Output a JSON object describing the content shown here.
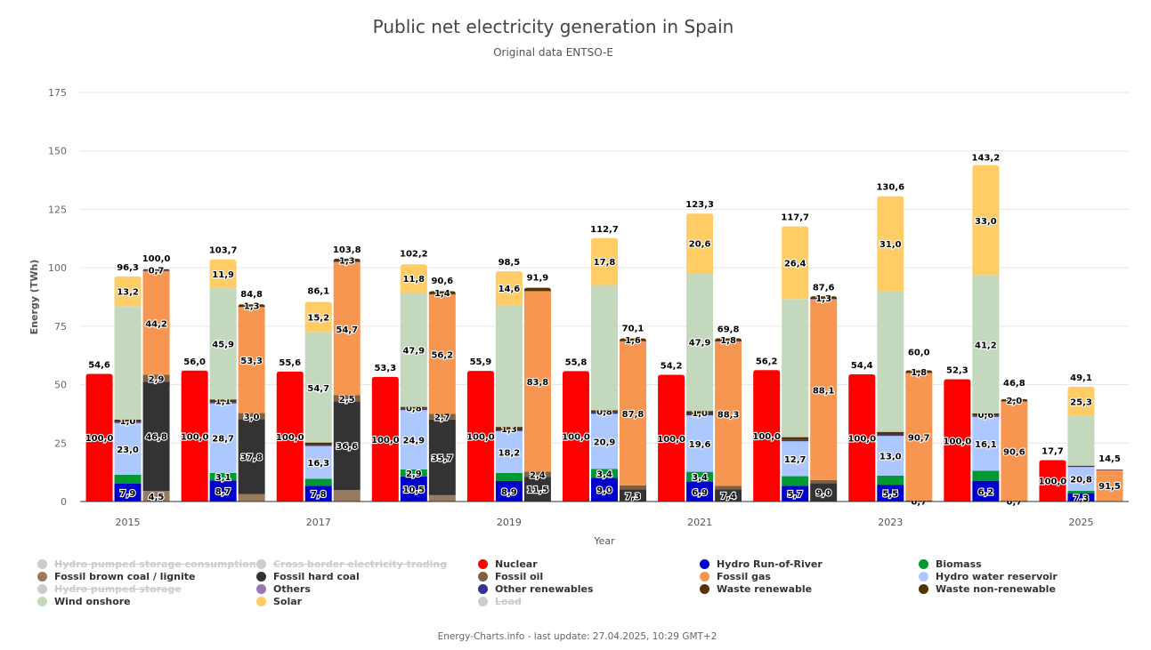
{
  "header": {
    "title": "Public net electricity generation in Spain",
    "subtitle": "Original data ENTSO-E"
  },
  "footer": "Energy-Charts.info - last update: 27.04.2025, 10:29 GMT+2",
  "chart_data": {
    "type": "bar",
    "stacked": true,
    "title": "Public net electricity generation in Spain",
    "subtitle": "Original data ENTSO-E",
    "xlabel": "Year",
    "ylabel": "Energy (TWh)",
    "ylim": [
      0,
      175
    ],
    "yticks": [
      0,
      25,
      50,
      75,
      100,
      125,
      150,
      175
    ],
    "xtick_labels": [
      "2015",
      "2017",
      "2019",
      "2021",
      "2023",
      "2025"
    ],
    "grid": true,
    "legend_position": "bottom",
    "label_unit_note": "Segment labels are percent share within each stack; top labels are stack totals in TWh",
    "categories": [
      "2015",
      "2016",
      "2017",
      "2018",
      "2019",
      "2020",
      "2021",
      "2022",
      "2023",
      "2024",
      "2025"
    ],
    "stacks": [
      {
        "name": "Nuclear",
        "totals": [
          54.6,
          56.0,
          55.6,
          53.3,
          55.9,
          55.8,
          54.2,
          56.2,
          54.4,
          52.3,
          17.7
        ],
        "segments": [
          {
            "series": "Nuclear",
            "percent": [
              100.0,
              100.0,
              100.0,
              100.0,
              100.0,
              100.0,
              100.0,
              100.0,
              100.0,
              100.0,
              100.0
            ],
            "labeled": [
              true,
              true,
              true,
              true,
              true,
              true,
              true,
              true,
              true,
              true,
              true
            ]
          }
        ]
      },
      {
        "name": "Renewables",
        "totals": [
          96.3,
          103.7,
          86.1,
          102.2,
          98.5,
          112.7,
          123.3,
          117.7,
          130.6,
          143.2,
          49.1
        ],
        "segments": [
          {
            "series": "Hydro Run-of-River",
            "percent": [
              7.9,
              8.7,
              7.8,
              10.5,
              8.9,
              9.0,
              6.9,
              5.7,
              5.5,
              6.2,
              7.3
            ],
            "labeled": [
              true,
              true,
              true,
              true,
              true,
              true,
              true,
              true,
              true,
              true,
              true
            ]
          },
          {
            "series": "Biomass",
            "percent": [
              4.0,
              3.1,
              3.5,
              2.9,
              3.5,
              3.4,
              3.4,
              3.5,
              3.0,
              3.0,
              2.0
            ],
            "labeled": [
              false,
              true,
              false,
              true,
              false,
              true,
              true,
              false,
              false,
              false,
              false
            ]
          },
          {
            "series": "Hydro water reservoir",
            "percent": [
              23.0,
              28.7,
              16.3,
              24.9,
              18.2,
              20.9,
              19.6,
              12.7,
              13.0,
              16.1,
              20.8
            ],
            "labeled": [
              true,
              true,
              true,
              true,
              true,
              true,
              true,
              true,
              true,
              true,
              true
            ]
          },
          {
            "series": "Other renewables",
            "percent": [
              0.5,
              0.5,
              0.5,
              0.5,
              0.5,
              0.5,
              0.5,
              0.5,
              0.5,
              0.4,
              0.5
            ],
            "labeled": [
              false,
              false,
              false,
              false,
              false,
              false,
              false,
              false,
              false,
              false,
              false
            ]
          },
          {
            "series": "Waste renewable",
            "percent": [
              1.0,
              1.1,
              1.2,
              0.8,
              1.3,
              0.8,
              1.0,
              1.0,
              0.8,
              0.6,
              0.6
            ],
            "labeled": [
              true,
              true,
              false,
              true,
              true,
              true,
              true,
              false,
              false,
              true,
              false
            ]
          },
          {
            "series": "Wind onshore",
            "percent": [
              50.4,
              45.9,
              54.7,
              47.9,
              53.0,
              47.6,
              47.9,
              50.2,
              46.2,
              41.2,
              43.5
            ],
            "labeled": [
              false,
              true,
              true,
              true,
              false,
              false,
              true,
              false,
              false,
              true,
              false
            ]
          },
          {
            "series": "Solar",
            "percent": [
              13.2,
              11.9,
              15.2,
              11.8,
              14.6,
              17.8,
              20.6,
              26.4,
              31.0,
              33.0,
              25.3
            ],
            "labeled": [
              true,
              true,
              true,
              true,
              true,
              true,
              true,
              true,
              true,
              true,
              true
            ]
          }
        ]
      },
      {
        "name": "Fossil",
        "totals": [
          100.0,
          84.8,
          103.8,
          90.6,
          91.9,
          70.1,
          69.8,
          87.6,
          60.0,
          46.8,
          14.5
        ],
        "segments": [
          {
            "series": "Fossil brown coal / lignite",
            "percent": [
              4.5,
              3.8,
              4.7,
              3.0,
              0.0,
              0.0,
              0.0,
              0.0,
              0.0,
              0.0,
              0.0
            ],
            "labeled": [
              true,
              false,
              false,
              false,
              false,
              false,
              false,
              false,
              false,
              false,
              false
            ]
          },
          {
            "series": "Fossil hard coal",
            "percent": [
              46.8,
              37.8,
              36.6,
              35.7,
              11.5,
              7.3,
              7.4,
              9.0,
              0.7,
              0.7,
              1.5
            ],
            "labeled": [
              true,
              true,
              true,
              true,
              true,
              true,
              true,
              true,
              true,
              true,
              false
            ]
          },
          {
            "series": "Fossil oil",
            "percent": [
              2.9,
              3.0,
              2.5,
              2.7,
              2.4,
              2.5,
              2.2,
              1.5,
              0.0,
              0.0,
              0.0
            ],
            "labeled": [
              true,
              true,
              true,
              true,
              true,
              false,
              false,
              false,
              false,
              false,
              false
            ]
          },
          {
            "series": "Fossil gas",
            "percent": [
              44.2,
              53.3,
              54.7,
              56.2,
              83.8,
              87.8,
              88.3,
              88.1,
              90.7,
              90.6,
              91.5
            ],
            "labeled": [
              true,
              true,
              true,
              true,
              true,
              true,
              true,
              true,
              true,
              true,
              true
            ]
          },
          {
            "series": "Others",
            "percent": [
              0.3,
              0.3,
              0.3,
              0.3,
              0.3,
              0.3,
              0.3,
              0.3,
              0.3,
              0.3,
              0.3
            ],
            "labeled": [
              false,
              false,
              false,
              false,
              false,
              false,
              false,
              false,
              false,
              false,
              false
            ]
          },
          {
            "series": "Waste non-renewable",
            "percent": [
              0.7,
              1.3,
              1.3,
              1.4,
              1.5,
              1.6,
              1.8,
              1.3,
              1.8,
              2.0,
              1.0
            ],
            "labeled": [
              true,
              true,
              true,
              true,
              false,
              true,
              true,
              true,
              true,
              true,
              false
            ]
          }
        ]
      }
    ],
    "series_colors": {
      "Nuclear": "#ff0000",
      "Hydro Run-of-River": "#0000cc",
      "Biomass": "#009933",
      "Hydro water reservoir": "#adc8ff",
      "Other renewables": "#333399",
      "Waste renewable": "#553300",
      "Wind onshore": "#c3d8bc",
      "Solar": "#ffcc66",
      "Fossil brown coal / lignite": "#997a5e",
      "Fossil hard coal": "#333333",
      "Fossil oil": "#806040",
      "Fossil gas": "#f79650",
      "Others": "#9779b7",
      "Waste non-renewable": "#553300"
    },
    "legend": [
      {
        "label": "Hydro pumped storage consumption",
        "color": "#cccccc",
        "visible": false
      },
      {
        "label": "Cross border electricity trading",
        "color": "#cccccc",
        "visible": false
      },
      {
        "label": "Nuclear",
        "color": "#ff0000",
        "visible": true
      },
      {
        "label": "Hydro Run-of-River",
        "color": "#0000cc",
        "visible": true
      },
      {
        "label": "Biomass",
        "color": "#009933",
        "visible": true
      },
      {
        "label": "Fossil brown coal / lignite",
        "color": "#997a5e",
        "visible": true
      },
      {
        "label": "Fossil hard coal",
        "color": "#333333",
        "visible": true
      },
      {
        "label": "Fossil oil",
        "color": "#806040",
        "visible": true
      },
      {
        "label": "Fossil gas",
        "color": "#f79650",
        "visible": true
      },
      {
        "label": "Hydro water reservoir",
        "color": "#adc8ff",
        "visible": true
      },
      {
        "label": "Hydro pumped storage",
        "color": "#cccccc",
        "visible": false
      },
      {
        "label": "Others",
        "color": "#9779b7",
        "visible": true
      },
      {
        "label": "Other renewables",
        "color": "#333399",
        "visible": true
      },
      {
        "label": "Waste renewable",
        "color": "#553300",
        "visible": true
      },
      {
        "label": "Waste non-renewable",
        "color": "#553300",
        "visible": true
      },
      {
        "label": "Wind onshore",
        "color": "#c3d8bc",
        "visible": true
      },
      {
        "label": "Solar",
        "color": "#ffcc66",
        "visible": true
      },
      {
        "label": "Load",
        "color": "#cccccc",
        "visible": false
      }
    ]
  }
}
